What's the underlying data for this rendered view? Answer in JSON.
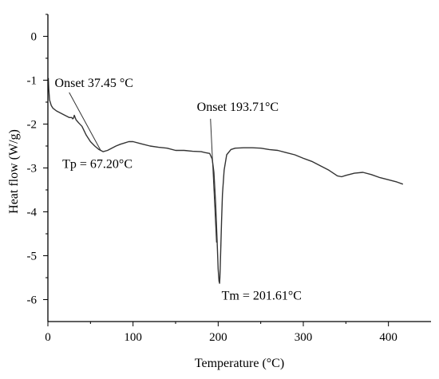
{
  "chart_data": {
    "type": "line",
    "xlabel": "Temperature (°C)",
    "ylabel": "Heat flow (W/g)",
    "xlim": [
      0,
      450
    ],
    "ylim": [
      -6.5,
      0.5
    ],
    "xticks": [
      0,
      100,
      200,
      300,
      400
    ],
    "yticks": [
      0,
      -1,
      -2,
      -3,
      -4,
      -5,
      -6
    ],
    "xtick_labels": [
      "0",
      "100",
      "200",
      "300",
      "400"
    ],
    "ytick_labels": [
      "0",
      "-1",
      "-2",
      "-3",
      "-4",
      "-5",
      "-6"
    ],
    "grid": false,
    "series": [
      {
        "x": [
          0.5,
          1,
          2,
          4,
          6,
          10,
          15,
          20,
          25,
          28,
          29,
          30,
          31,
          33,
          36,
          40,
          45,
          50,
          55,
          60,
          65,
          70,
          75,
          80,
          85,
          90,
          95,
          100,
          110,
          120,
          130,
          140,
          150,
          160,
          170,
          180,
          185,
          190,
          193,
          195,
          197,
          198,
          199,
          200,
          201,
          201.61,
          202,
          203,
          204,
          205,
          207,
          210,
          215,
          220,
          230,
          240,
          250,
          260,
          270,
          280,
          290,
          300,
          310,
          320,
          330,
          340,
          345,
          350,
          360,
          370,
          380,
          390,
          400,
          410,
          417
        ],
        "y": [
          -0.95,
          -1.2,
          -1.45,
          -1.58,
          -1.64,
          -1.7,
          -1.75,
          -1.8,
          -1.85,
          -1.85,
          -1.88,
          -1.87,
          -1.8,
          -1.9,
          -1.97,
          -2.05,
          -2.25,
          -2.4,
          -2.5,
          -2.58,
          -2.63,
          -2.6,
          -2.55,
          -2.5,
          -2.46,
          -2.43,
          -2.4,
          -2.4,
          -2.45,
          -2.5,
          -2.53,
          -2.55,
          -2.6,
          -2.6,
          -2.62,
          -2.63,
          -2.65,
          -2.67,
          -2.8,
          -3.1,
          -3.8,
          -4.3,
          -4.8,
          -5.3,
          -5.58,
          -5.63,
          -5.5,
          -4.9,
          -4.2,
          -3.6,
          -3.05,
          -2.7,
          -2.58,
          -2.55,
          -2.54,
          -2.54,
          -2.55,
          -2.58,
          -2.6,
          -2.65,
          -2.7,
          -2.78,
          -2.85,
          -2.95,
          -3.05,
          -3.18,
          -3.2,
          -3.17,
          -3.12,
          -3.1,
          -3.15,
          -3.22,
          -3.27,
          -3.32,
          -3.37
        ]
      }
    ],
    "annotations": {
      "onset1": "Onset 37.45 °C",
      "tp": "Tp = 67.20°C",
      "onset2": "Onset 193.71°C",
      "tm": "Tm = 201.61°C"
    },
    "leaders": [
      {
        "from": [
          25,
          -1.28
        ],
        "to": [
          62,
          -2.6
        ]
      },
      {
        "from": [
          191,
          -1.88
        ],
        "to": [
          198,
          -4.7
        ]
      }
    ],
    "annotation_points": {
      "onset1": [
        8,
        -1.15
      ],
      "tp": [
        17,
        -3.0
      ],
      "onset2": [
        175,
        -1.7
      ],
      "tm": [
        204,
        -6.0
      ]
    }
  }
}
